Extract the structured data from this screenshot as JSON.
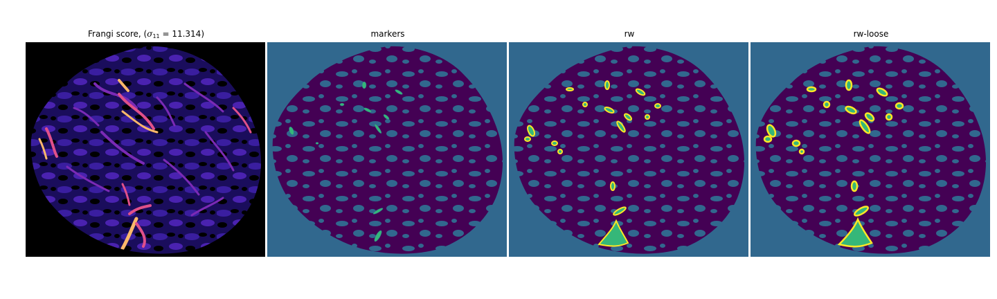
{
  "panels": [
    {
      "title_prefix": "Frangi score, (",
      "title_symbol": "σ",
      "title_subscript": "11",
      "title_suffix": " = 11.314)",
      "image": "frangi-vesselness-map",
      "colormap": "magma"
    },
    {
      "title": "markers",
      "image": "marker-labels",
      "colormap": "viridis"
    },
    {
      "title": "rw",
      "image": "random-walker-segmentation",
      "colormap": "viridis"
    },
    {
      "title": "rw-loose",
      "image": "random-walker-loose-segmentation",
      "colormap": "viridis"
    }
  ],
  "colors": {
    "magma_background": "#000000",
    "magma_low": "#2b1a8c",
    "magma_mid": "#7b2ab5",
    "magma_high": "#e0508a",
    "magma_peak": "#fcb86a",
    "viridis_background": "#31688e",
    "viridis_tissue": "#440154",
    "viridis_marker": "#35b779",
    "viridis_vessel": "#fde725"
  }
}
